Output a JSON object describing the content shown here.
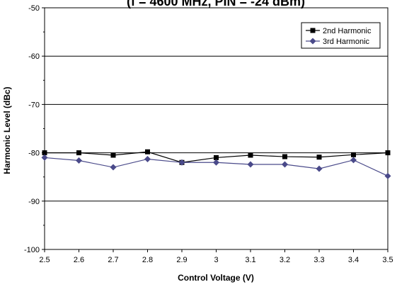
{
  "chart_data": {
    "type": "line",
    "title": "(f = 4600 MHz, PIN = -24 dBm)",
    "xlabel": "Control Voltage (V)",
    "ylabel": "Harmonic Level (dBc)",
    "x": [
      2.5,
      2.6,
      2.7,
      2.8,
      2.9,
      3.0,
      3.1,
      3.2,
      3.3,
      3.4,
      3.5
    ],
    "x_tick_labels": [
      "2.5",
      "2.6",
      "2.7",
      "2.8",
      "2.9",
      "3",
      "3.1",
      "3.2",
      "3.3",
      "3.4",
      "3.5"
    ],
    "xlim": [
      2.5,
      3.5
    ],
    "ylim": [
      -100,
      -50
    ],
    "y_ticks": [
      -100,
      -90,
      -80,
      -70,
      -60,
      -50
    ],
    "y_tick_labels": [
      "-100",
      "-90",
      "-80",
      "-70",
      "-60",
      "-50"
    ],
    "grid": true,
    "legend_position": "top-right",
    "series": [
      {
        "name": "2nd Harmonic",
        "marker": "square",
        "color": "#000000",
        "values": [
          -80.0,
          -80.0,
          -80.5,
          -79.8,
          -82.0,
          -81.0,
          -80.5,
          -80.8,
          -80.9,
          -80.4,
          -80.0
        ]
      },
      {
        "name": "3rd Harmonic",
        "marker": "diamond",
        "color": "#4a4a8a",
        "values": [
          -81.0,
          -81.6,
          -83.0,
          -81.3,
          -82.0,
          -82.0,
          -82.4,
          -82.4,
          -83.3,
          -81.5,
          -84.8
        ]
      }
    ]
  }
}
